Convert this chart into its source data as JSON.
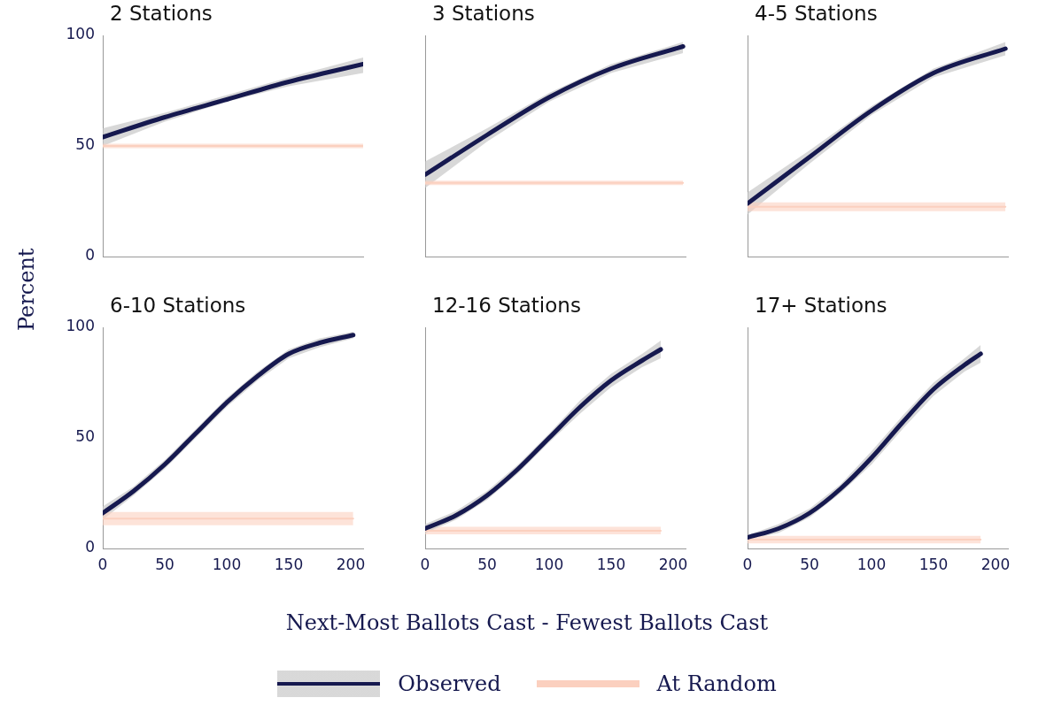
{
  "chart_data": [
    {
      "type": "line",
      "title": "2 Stations",
      "ylabel": "Percent",
      "xlim": [
        0,
        210
      ],
      "ylim": [
        0,
        100
      ],
      "xticks": [
        0,
        50,
        100,
        150,
        200
      ],
      "yticks": [
        0,
        50,
        100
      ],
      "tick_labels": "y",
      "grid": false,
      "series": [
        {
          "color": "#fbd0bf",
          "x": [
            0,
            210
          ],
          "values": [
            50,
            50
          ],
          "lower": [
            49,
            49
          ],
          "upper": [
            51,
            51
          ]
        },
        {
          "color": "#16194f",
          "x": [
            0,
            50,
            100,
            150,
            210
          ],
          "values": [
            54,
            63,
            71,
            79,
            87
          ],
          "lower": [
            50,
            61,
            70,
            77,
            83
          ],
          "upper": [
            58,
            65,
            73,
            81,
            90
          ]
        }
      ]
    },
    {
      "type": "line",
      "title": "3 Stations",
      "xlim": [
        0,
        210
      ],
      "ylim": [
        0,
        100
      ],
      "xticks": [
        0,
        50,
        100,
        150,
        200
      ],
      "yticks": [
        0,
        50,
        100
      ],
      "tick_labels": false,
      "grid": false,
      "series": [
        {
          "color": "#fbd0bf",
          "x": [
            0,
            208
          ],
          "values": [
            33.3,
            33.3
          ],
          "lower": [
            32.3,
            32.3
          ],
          "upper": [
            34.3,
            34.3
          ]
        },
        {
          "color": "#16194f",
          "x": [
            0,
            50,
            100,
            150,
            208
          ],
          "values": [
            37,
            55,
            72,
            85,
            95
          ],
          "lower": [
            31,
            52,
            70,
            83,
            92
          ],
          "upper": [
            43,
            58,
            74,
            87,
            97
          ]
        }
      ]
    },
    {
      "type": "line",
      "title": "4-5 Stations",
      "xlim": [
        0,
        210
      ],
      "ylim": [
        0,
        100
      ],
      "xticks": [
        0,
        50,
        100,
        150,
        200
      ],
      "yticks": [
        0,
        50,
        100
      ],
      "tick_labels": false,
      "grid": false,
      "series": [
        {
          "color": "#fbd0bf",
          "x": [
            0,
            208
          ],
          "values": [
            22.5,
            22.5
          ],
          "lower": [
            20.5,
            20.5
          ],
          "upper": [
            24.5,
            24.5
          ]
        },
        {
          "color": "#16194f",
          "x": [
            0,
            50,
            100,
            150,
            208
          ],
          "values": [
            24,
            45,
            66,
            83,
            94
          ],
          "lower": [
            19,
            42,
            64,
            81,
            91
          ],
          "upper": [
            29,
            48,
            68,
            85,
            97
          ]
        }
      ]
    },
    {
      "type": "line",
      "title": "6-10 Stations",
      "xlim": [
        0,
        210
      ],
      "ylim": [
        0,
        100
      ],
      "xticks": [
        0,
        50,
        100,
        150,
        200
      ],
      "yticks": [
        0,
        50,
        100
      ],
      "grid": false,
      "series": [
        {
          "color": "#fbd0bf",
          "x": [
            0,
            202
          ],
          "values": [
            13.5,
            13.5
          ],
          "lower": [
            10.5,
            10.5
          ],
          "upper": [
            16.5,
            16.5
          ]
        },
        {
          "color": "#16194f",
          "x": [
            0,
            25,
            50,
            75,
            100,
            125,
            150,
            175,
            202
          ],
          "values": [
            16,
            26,
            38,
            52,
            66,
            78,
            88,
            93,
            96.5
          ],
          "lower": [
            13,
            24,
            36,
            50,
            64,
            76,
            86,
            91,
            95
          ],
          "upper": [
            19,
            28,
            40,
            54,
            68,
            80,
            90,
            95,
            98
          ]
        }
      ]
    },
    {
      "type": "line",
      "title": "12-16 Stations",
      "xlabel": "Next-Most Ballots Cast - Fewest Ballots Cast",
      "legend": "bottom",
      "xlim": [
        0,
        210
      ],
      "ylim": [
        0,
        100
      ],
      "xticks": [
        0,
        50,
        100,
        150,
        200
      ],
      "yticks": [
        0,
        50,
        100
      ],
      "tick_labels": "x",
      "grid": false,
      "series": [
        {
          "name": "Observed",
          "color": "#16194f",
          "x": [
            0,
            25,
            50,
            75,
            100,
            125,
            150,
            175,
            190
          ],
          "values": [
            9,
            15,
            24,
            36,
            50,
            64,
            76,
            85,
            90
          ],
          "lower": [
            7,
            13,
            22,
            34,
            48,
            61,
            73,
            82,
            86
          ],
          "upper": [
            11,
            17,
            26,
            38,
            52,
            67,
            79,
            88,
            94
          ]
        },
        {
          "name": "At Random",
          "color": "#fbd0bf",
          "x": [
            0,
            190
          ],
          "values": [
            8,
            8
          ],
          "lower": [
            6.4,
            6.4
          ],
          "upper": [
            9.8,
            9.8
          ]
        }
      ]
    },
    {
      "type": "line",
      "title": "17+ Stations",
      "xlim": [
        0,
        210
      ],
      "ylim": [
        0,
        100
      ],
      "xticks": [
        0,
        50,
        100,
        150,
        200
      ],
      "yticks": [
        0,
        50,
        100
      ],
      "tick_labels": "x",
      "grid": false,
      "series": [
        {
          "color": "#fbd0bf",
          "x": [
            0,
            188
          ],
          "values": [
            4,
            4
          ],
          "lower": [
            2.3,
            2.3
          ],
          "upper": [
            5.7,
            5.7
          ]
        },
        {
          "color": "#16194f",
          "x": [
            0,
            25,
            50,
            75,
            100,
            125,
            150,
            175,
            188
          ],
          "values": [
            5,
            9,
            16,
            27,
            41,
            57,
            72,
            83,
            88
          ],
          "lower": [
            4,
            7,
            14,
            25,
            38,
            54,
            69,
            80,
            84
          ],
          "upper": [
            6,
            11,
            18,
            29,
            44,
            60,
            75,
            86,
            92
          ]
        }
      ]
    }
  ]
}
